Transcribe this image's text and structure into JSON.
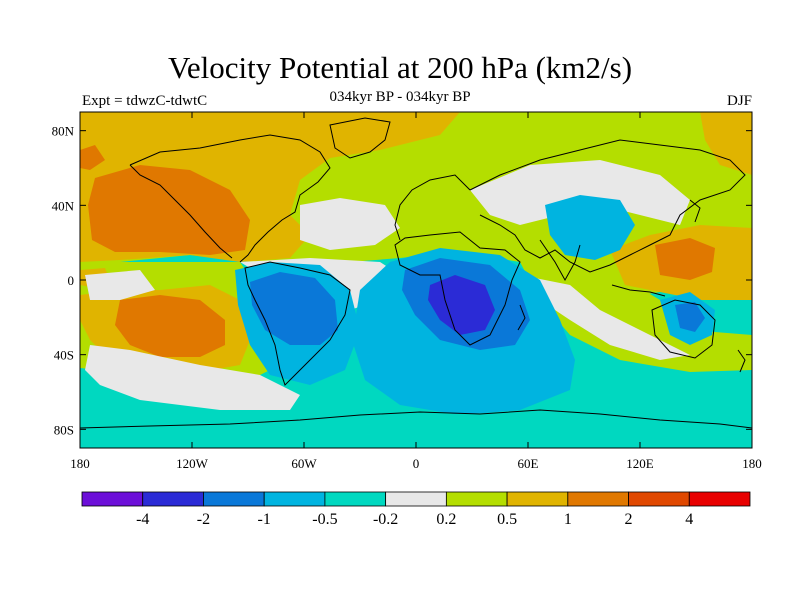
{
  "title": "Velocity Potential at 200 hPa (km2/s)",
  "subtitle_left": "Expt = tdwzC-tdwtC",
  "subtitle_center": "034kyr BP - 034kyr BP",
  "subtitle_right": "DJF",
  "chart_data": {
    "type": "heatmap",
    "map_projection": "cylindrical equidistant",
    "x_range": [
      -180,
      180
    ],
    "y_range": [
      -90,
      90
    ],
    "x_ticks": [
      {
        "value": -180,
        "label": "180"
      },
      {
        "value": -120,
        "label": "120W"
      },
      {
        "value": -60,
        "label": "60W"
      },
      {
        "value": 0,
        "label": "0"
      },
      {
        "value": 60,
        "label": "60E"
      },
      {
        "value": 120,
        "label": "120E"
      },
      {
        "value": 180,
        "label": "180"
      }
    ],
    "y_ticks": [
      {
        "value": 80,
        "label": "80N"
      },
      {
        "value": 40,
        "label": "40N"
      },
      {
        "value": 0,
        "label": "0"
      },
      {
        "value": -40,
        "label": "40S"
      },
      {
        "value": -80,
        "label": "80S"
      }
    ],
    "colorbar": {
      "colors": [
        "#6c0fd8",
        "#2b2bd6",
        "#0a78d8",
        "#00b4e0",
        "#00d8c0",
        "#e8e8e8",
        "#b4de00",
        "#e0b400",
        "#e07800",
        "#e04800",
        "#e80000"
      ],
      "labels": [
        "-4",
        "-2",
        "-1",
        "-0.5",
        "-0.2",
        "0.2",
        "0.5",
        "1",
        "2",
        "4"
      ]
    },
    "features": [
      {
        "level": "-4 to -2",
        "region": "southern Africa",
        "lon": 20,
        "lat": -15
      },
      {
        "level": "-2 to -1",
        "region": "South America / southern Africa",
        "lon": -70,
        "lat": -10
      },
      {
        "level": "1 to 2",
        "region": "North Pacific",
        "lon": -150,
        "lat": 30
      },
      {
        "level": "1 to 2",
        "region": "South Pacific",
        "lon": -140,
        "lat": -25
      },
      {
        "level": "1 to 2",
        "region": "western Pacific",
        "lon": 150,
        "lat": 10
      }
    ]
  }
}
